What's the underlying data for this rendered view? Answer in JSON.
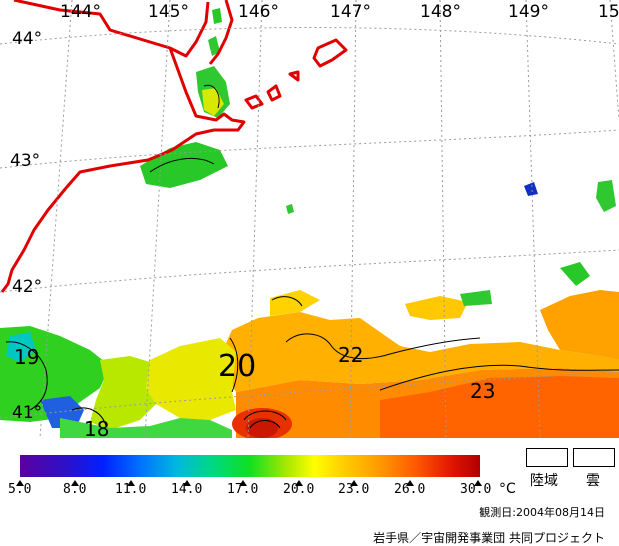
{
  "map": {
    "longitude_labels": [
      "144°",
      "145°",
      "146°",
      "147°",
      "148°",
      "149°",
      "15"
    ],
    "latitude_labels": [
      "44°",
      "43°",
      "42°",
      "41°"
    ],
    "isotherm_labels": [
      "19",
      "20",
      "22",
      "23",
      "18"
    ],
    "colors": {
      "coastline": "#e00000",
      "graticule": "#9a9a9a",
      "contour": "#000000"
    }
  },
  "legend": {
    "tick_labels": [
      "5.0",
      "8.0",
      "11.0",
      "14.0",
      "17.0",
      "20.0",
      "23.0",
      "26.0",
      "30.0"
    ],
    "unit": "°C",
    "land_label": "陸域",
    "cloud_label": "雲"
  },
  "footer": {
    "observation_date": "観測日:2004年08月14日",
    "credit": "岩手県／宇宙開発事業団 共同プロジェクト"
  }
}
